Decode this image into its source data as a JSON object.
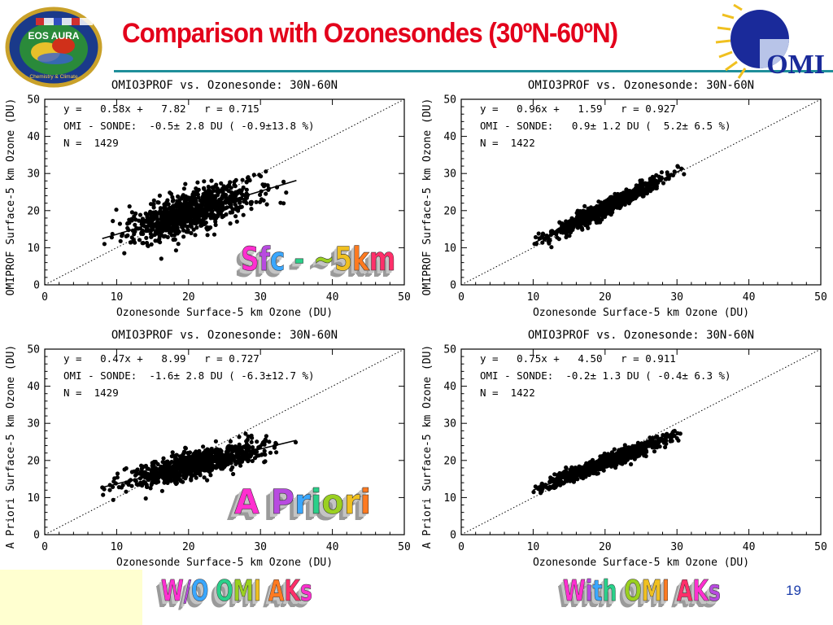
{
  "slide": {
    "title": "Comparison with Ozonesondes (30ºN-60ºN)",
    "page_number": "19",
    "label_sfc": "Sfc - ~5km",
    "label_apriori": "A Priori",
    "label_wo_aks": "W/O OMI AKs",
    "label_with_aks": "With OMI AKs",
    "logo_left_text": "EOS AURA",
    "logo_left_subtext": "Chemistry & Climate",
    "logo_right_text": "OMI",
    "colors": {
      "title": "#e3001b",
      "rule": "#1f8f9a",
      "page_number": "#1a3caa"
    }
  },
  "chart_data": [
    {
      "type": "scatter",
      "title": "OMIO3PROF vs. Ozonesonde: 30N-60N",
      "xlabel": "Ozonesonde Surface-5 km Ozone (DU)",
      "ylabel": "OMIPROF Surface-5 km Ozone (DU)",
      "xlim": [
        0,
        50
      ],
      "ylim": [
        0,
        50
      ],
      "xticks": [
        "0",
        "10",
        "20",
        "30",
        "40",
        "50"
      ],
      "yticks": [
        "0",
        "10",
        "20",
        "30",
        "40",
        "50"
      ],
      "stats": [
        "y =   0.58x +   7.82   r = 0.715",
        "OMI - SONDE:  -0.5± 2.8 DU ( -0.9±13.8 %)",
        "N =  1429"
      ],
      "fit": {
        "slope": 0.58,
        "intercept": 7.82,
        "x_range": [
          8,
          35
        ]
      },
      "cloud": {
        "center": [
          20,
          19.4
        ],
        "spread_x": 4.3,
        "spread_perp": 2.8,
        "x_range": [
          8,
          36
        ]
      },
      "grid": false,
      "one_to_one_line": true
    },
    {
      "type": "scatter",
      "title": "OMIO3PROF vs. Ozonesonde: 30N-60N",
      "xlabel": "Ozonesonde Surface-5 km Ozone (DU)",
      "ylabel": "OMIPROF Surface-5 km Ozone (DU)",
      "xlim": [
        0,
        50
      ],
      "ylim": [
        0,
        50
      ],
      "xticks": [
        "0",
        "10",
        "20",
        "30",
        "40",
        "50"
      ],
      "yticks": [
        "0",
        "10",
        "20",
        "30",
        "40",
        "50"
      ],
      "stats": [
        "y =   0.96x +   1.59   r = 0.927",
        "OMI - SONDE:   0.9± 1.2 DU (  5.2± 6.5 %)",
        "N =  1422"
      ],
      "fit": {
        "slope": 0.96,
        "intercept": 1.59,
        "x_range": [
          10,
          31
        ]
      },
      "cloud": {
        "center": [
          20,
          20.8
        ],
        "spread_x": 3.9,
        "spread_perp": 1.0,
        "x_range": [
          10,
          31
        ]
      },
      "grid": false,
      "one_to_one_line": true
    },
    {
      "type": "scatter",
      "title": "OMIO3PROF vs. Ozonesonde: 30N-60N",
      "xlabel": "Ozonesonde Surface-5 km Ozone (DU)",
      "ylabel": "A Priori Surface-5 km Ozone (DU)",
      "xlim": [
        0,
        50
      ],
      "ylim": [
        0,
        50
      ],
      "xticks": [
        "0",
        "10",
        "20",
        "30",
        "40",
        "50"
      ],
      "yticks": [
        "0",
        "10",
        "20",
        "30",
        "40",
        "50"
      ],
      "stats": [
        "y =   0.47x +   8.99   r = 0.727",
        "OMI - SONDE:  -1.6± 2.8 DU ( -6.3±12.7 %)",
        "N =  1429"
      ],
      "fit": {
        "slope": 0.47,
        "intercept": 8.99,
        "x_range": [
          8,
          35
        ]
      },
      "cloud": {
        "center": [
          21,
          18.9
        ],
        "spread_x": 4.5,
        "spread_perp": 1.7,
        "x_range": [
          8,
          36
        ]
      },
      "grid": false,
      "one_to_one_line": true
    },
    {
      "type": "scatter",
      "title": "OMIO3PROF vs. Ozonesonde: 30N-60N",
      "xlabel": "Ozonesonde Surface-5 km Ozone (DU)",
      "ylabel": "A Priori Surface-5 km Ozone (DU)",
      "xlim": [
        0,
        50
      ],
      "ylim": [
        0,
        50
      ],
      "xticks": [
        "0",
        "10",
        "20",
        "30",
        "40",
        "50"
      ],
      "yticks": [
        "0",
        "10",
        "20",
        "30",
        "40",
        "50"
      ],
      "stats": [
        "y =   0.75x +   4.50   r = 0.911",
        "OMI - SONDE:  -0.2± 1.3 DU ( -0.4± 6.3 %)",
        "N =  1422"
      ],
      "fit": {
        "slope": 0.75,
        "intercept": 4.5,
        "x_range": [
          10,
          30.5
        ]
      },
      "cloud": {
        "center": [
          20,
          19.5
        ],
        "spread_x": 3.9,
        "spread_perp": 0.9,
        "x_range": [
          10,
          31
        ]
      },
      "grid": false,
      "one_to_one_line": true
    }
  ]
}
